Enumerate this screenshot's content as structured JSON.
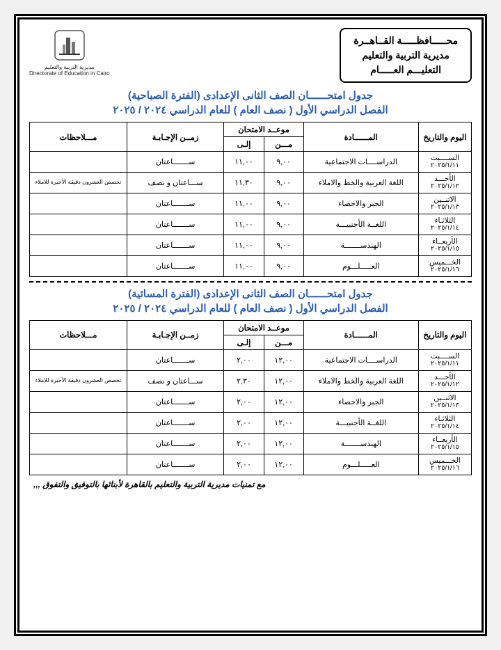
{
  "authority": {
    "line1": "محـــــافظـــــة القــاهــرة",
    "line2": "مديرية التربية والتعليم",
    "line3": "التعليـــم العـــــام"
  },
  "logo": {
    "caption": "مديرية التربية والتعليم",
    "sub": "Directorate of Education in Cairo"
  },
  "title_color": "#2a5db0",
  "border_color": "#000000",
  "section1": {
    "title_line1": "جدول امتحــــــان الصف الثانى الإعدادى (الفترة الصباحية)",
    "title_line2": "الفصل الدراسي الأول ( نصف العام ) للعام الدراسي ٢٠٢٤ / ٢٠٢٥",
    "headers": {
      "date": "اليوم والتاريخ",
      "subject": "المــــــادة",
      "time_group": "موعــد الامتحان",
      "from": "مـــن",
      "to": "إلـى",
      "duration": "زمــن الإجـابـة",
      "notes": "مـــلاحظات"
    },
    "rows": [
      {
        "day": "الســــبت",
        "date": "٢٠٢٥/١/١١",
        "subject": "الدراســــات الاجتماعية",
        "from": "٩,٠٠",
        "to": "١١,٠٠",
        "dur": "ســـــــاعتان",
        "notes": ""
      },
      {
        "day": "الأحـــد",
        "date": "٢٠٢٥/١/١٢",
        "subject": "اللغة العربية والخط والاملاء",
        "from": "٩,٠٠",
        "to": "١١,٣٠",
        "dur": "ســـاعتان و نصف",
        "notes": "تخصص العشرون دقيقة الأخيرة للاملاء"
      },
      {
        "day": "الاثنــين",
        "date": "٢٠٢٥/١/١٣",
        "subject": "الجبر والاحصاء",
        "from": "٩,٠٠",
        "to": "١١,٠٠",
        "dur": "ســـــــاعتان",
        "notes": ""
      },
      {
        "day": "الثلاثـاء",
        "date": "٢٠٢٥/١/١٤",
        "subject": "اللغــة الأجنبيـــة",
        "from": "٩,٠٠",
        "to": "١١,٠٠",
        "dur": "ســـــــاعتان",
        "notes": ""
      },
      {
        "day": "الأربعــاء",
        "date": "٢٠٢٥/١/١٥",
        "subject": "الهندســـــــة",
        "from": "٩,٠٠",
        "to": "١١,٠٠",
        "dur": "ســـــــاعتان",
        "notes": ""
      },
      {
        "day": "الخـــميس",
        "date": "٢٠٢٥/١/١٦",
        "subject": "العـــــلـــوم",
        "from": "٩,٠٠",
        "to": "١١,٠٠",
        "dur": "ســـــــاعتان",
        "notes": ""
      }
    ]
  },
  "section2": {
    "title_line1": "جدول امتحــــــان الصف الثانى الإعدادى (الفترة المسائية)",
    "title_line2": "الفصل الدراسي الأول ( نصف العام ) للعام الدراسي ٢٠٢٤ / ٢٠٢٥",
    "headers": {
      "date": "اليوم والتاريخ",
      "subject": "المــــــادة",
      "time_group": "موعــد الامتحان",
      "from": "مـــن",
      "to": "إلـى",
      "duration": "زمــن الإجـابـة",
      "notes": "مـــلاحظات"
    },
    "rows": [
      {
        "day": "الســــبت",
        "date": "٢٠٢٥/١/١١",
        "subject": "الدراســــات الاجتماعية",
        "from": "١٢,٠٠",
        "to": "٢,٠٠",
        "dur": "ســـــــاعتان",
        "notes": ""
      },
      {
        "day": "الأحـــد",
        "date": "٢٠٢٥/١/١٢",
        "subject": "اللغة العربية والخط والاملاء",
        "from": "١٢,٠٠",
        "to": "٢,٣٠",
        "dur": "ســـاعتان و نصف",
        "notes": "تخصص العشرون دقيقة الأخيرة للاملاء"
      },
      {
        "day": "الاثنــين",
        "date": "٢٠٢٥/١/١٣",
        "subject": "الجبر والاحصاء",
        "from": "١٢,٠٠",
        "to": "٢,٠٠",
        "dur": "ســـــــاعتان",
        "notes": ""
      },
      {
        "day": "الثلاثـاء",
        "date": "٢٠٢٥/١/١٤",
        "subject": "اللغــة الأجنبيـــة",
        "from": "١٢,٠٠",
        "to": "٢,٠٠",
        "dur": "ســـــــاعتان",
        "notes": ""
      },
      {
        "day": "الأربعــاء",
        "date": "٢٠٢٥/١/١٥",
        "subject": "الهندســـــــة",
        "from": "١٢,٠٠",
        "to": "٢,٠٠",
        "dur": "ســـــــاعتان",
        "notes": ""
      },
      {
        "day": "الخـــميس",
        "date": "٢٠٢٥/١/١٦",
        "subject": "العـــــلـــوم",
        "from": "١٢,٠٠",
        "to": "٢,٠٠",
        "dur": "ســـــــاعتان",
        "notes": ""
      }
    ]
  },
  "footer": "مع تمنيات مديرية التربية والتعليم بالقاهرة لأبنائها بالتوفيق والتفوق ,,,"
}
